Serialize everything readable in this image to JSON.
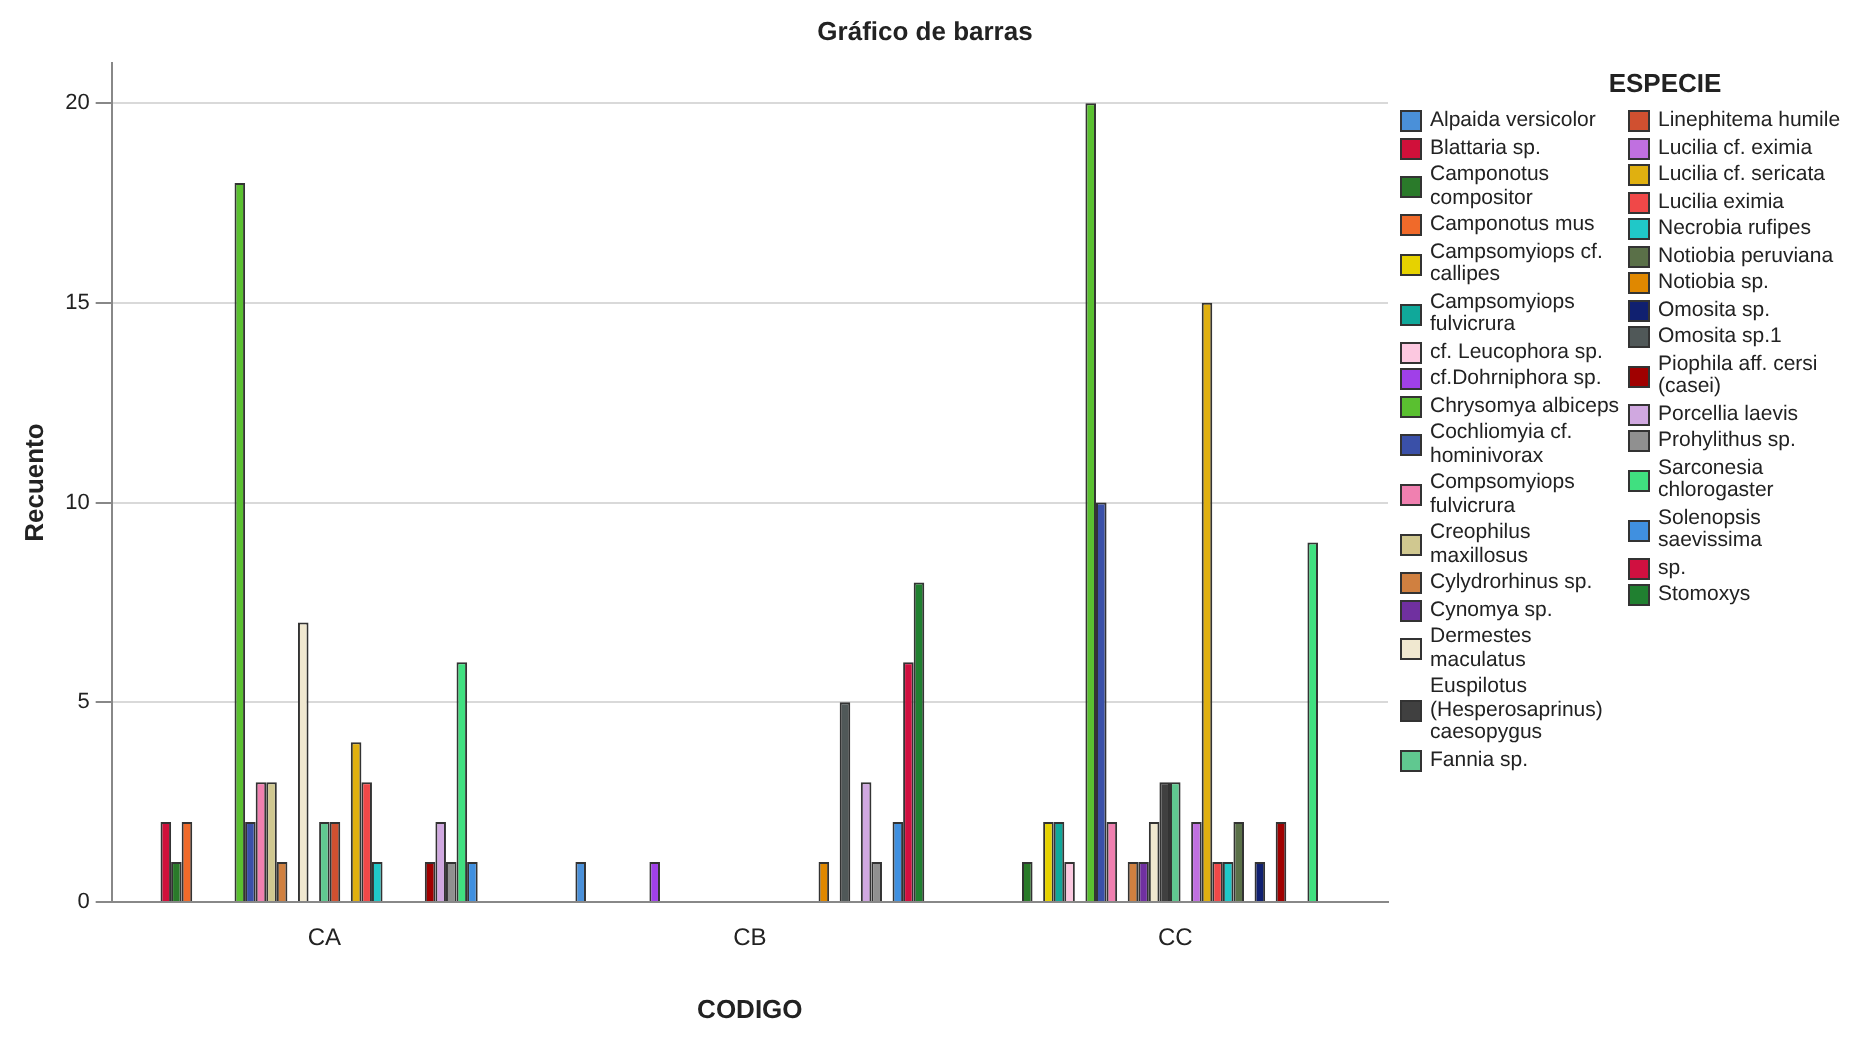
{
  "chart_data": {
    "type": "bar",
    "title": "Gráfico de barras",
    "xlabel": "CODIGO",
    "ylabel": "Recuento",
    "legend_title": "ESPECIE",
    "categories": [
      "CA",
      "CB",
      "CC"
    ],
    "ylim": [
      0,
      21
    ],
    "yticks": [
      0,
      5,
      10,
      15,
      20
    ],
    "grid": "y",
    "legend": "right",
    "series": [
      {
        "name": "Alpaida versicolor",
        "color": "#4a90d9",
        "values": [
          0,
          1,
          0
        ]
      },
      {
        "name": "Blattaria sp.",
        "color": "#d0103a",
        "values": [
          2,
          0,
          0
        ]
      },
      {
        "name": "Camponotus compositor",
        "color": "#2a7a2a",
        "values": [
          1,
          0,
          1
        ]
      },
      {
        "name": "Camponotus mus",
        "color": "#f06a2a",
        "values": [
          2,
          0,
          0
        ]
      },
      {
        "name": "Campsomyiops cf. callipes",
        "color": "#e6d200",
        "values": [
          0,
          0,
          2
        ]
      },
      {
        "name": "Campsomyiops fulvicrura",
        "color": "#10a89a",
        "values": [
          0,
          0,
          2
        ]
      },
      {
        "name": "cf. Leucophora sp.",
        "color": "#fcc8e0",
        "values": [
          0,
          0,
          1
        ]
      },
      {
        "name": "cf.Dohrniphora sp.",
        "color": "#a040e8",
        "values": [
          0,
          1,
          0
        ]
      },
      {
        "name": "Chrysomya albiceps",
        "color": "#5ac030",
        "values": [
          18,
          0,
          20
        ]
      },
      {
        "name": "Cochliomyia cf. hominivorax",
        "color": "#3a50a8",
        "values": [
          2,
          0,
          10
        ]
      },
      {
        "name": "Compsomyiops fulvicrura",
        "color": "#f080b0",
        "values": [
          3,
          0,
          2
        ]
      },
      {
        "name": "Creophilus maxillosus",
        "color": "#d0c890",
        "values": [
          3,
          0,
          0
        ]
      },
      {
        "name": "Cylydrorhinus sp.",
        "color": "#d08040",
        "values": [
          1,
          0,
          1
        ]
      },
      {
        "name": "Cynomya sp.",
        "color": "#7030a0",
        "values": [
          0,
          0,
          1
        ]
      },
      {
        "name": "Dermestes maculatus",
        "color": "#f0e8d0",
        "values": [
          7,
          0,
          2
        ]
      },
      {
        "name": "Euspilotus (Hesperosaprinus) caesopygus",
        "color": "#404040",
        "values": [
          0,
          0,
          3
        ]
      },
      {
        "name": "Fannia sp.",
        "color": "#60c890",
        "values": [
          2,
          0,
          3
        ]
      },
      {
        "name": "Linephitema humile",
        "color": "#d05030",
        "values": [
          2,
          0,
          0
        ]
      },
      {
        "name": "Lucilia cf. eximia",
        "color": "#c070e0",
        "values": [
          0,
          0,
          2
        ]
      },
      {
        "name": "Lucilia cf. sericata",
        "color": "#e0b010",
        "values": [
          4,
          0,
          15
        ]
      },
      {
        "name": "Lucilia eximia",
        "color": "#f04848",
        "values": [
          3,
          0,
          1
        ]
      },
      {
        "name": "Necrobia rufipes",
        "color": "#20c8c8",
        "values": [
          1,
          0,
          1
        ]
      },
      {
        "name": "Notiobia peruviana",
        "color": "#5a7048",
        "values": [
          0,
          0,
          2
        ]
      },
      {
        "name": "Notiobia sp.",
        "color": "#e08800",
        "values": [
          0,
          1,
          0
        ]
      },
      {
        "name": "Omosita sp.",
        "color": "#102070",
        "values": [
          0,
          0,
          1
        ]
      },
      {
        "name": "Omosita sp.1",
        "color": "#505858",
        "values": [
          0,
          5,
          0
        ]
      },
      {
        "name": "Piophila aff. cersi (casei)",
        "color": "#a00000",
        "values": [
          1,
          0,
          2
        ]
      },
      {
        "name": "Porcellia laevis",
        "color": "#d0a8e0",
        "values": [
          2,
          3,
          0
        ]
      },
      {
        "name": "Prohylithus sp.",
        "color": "#909090",
        "values": [
          1,
          1,
          0
        ]
      },
      {
        "name": "Sarconesia chlorogaster",
        "color": "#40e080",
        "values": [
          6,
          0,
          9
        ]
      },
      {
        "name": "Solenopsis saevissima",
        "color": "#4090e0",
        "values": [
          1,
          2,
          0
        ]
      },
      {
        "name": "sp.",
        "color": "#d01040",
        "values": [
          0,
          6,
          0
        ]
      },
      {
        "name": "Stomoxys",
        "color": "#208030",
        "values": [
          0,
          8,
          0
        ]
      }
    ]
  }
}
